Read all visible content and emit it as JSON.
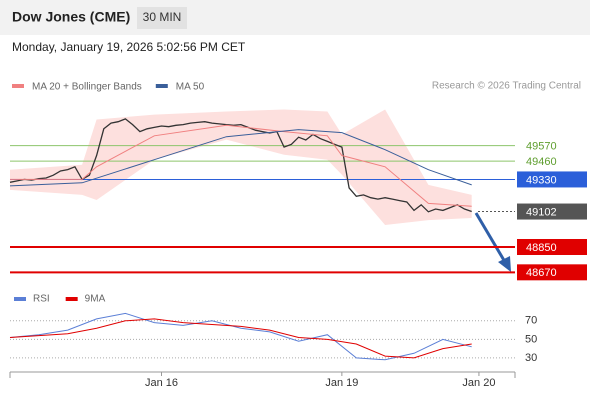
{
  "header": {
    "title": "Dow Jones (CME)",
    "timeframe": "30 MIN",
    "date": "Monday, January 19, 2026 5:02:56 PM CET",
    "credit": "Research © 2026 Trading Central"
  },
  "chart_data": [
    {
      "type": "line",
      "ylim": [
        48580,
        49930
      ],
      "xlim": [
        0,
        70
      ],
      "xticks": [
        {
          "value": 21,
          "label": "Jan 16"
        },
        {
          "value": 46,
          "label": "Jan 19"
        },
        {
          "value": 65,
          "label": "Jan 20"
        }
      ],
      "series": [
        {
          "color": "#333333",
          "x": [
            0,
            1,
            2,
            3,
            4,
            5,
            6,
            7,
            8,
            9,
            10,
            11,
            12,
            13,
            14,
            15,
            16,
            17,
            18,
            19,
            20,
            21,
            22,
            23,
            24,
            25,
            26,
            27,
            28,
            29,
            30,
            31,
            32,
            33,
            34,
            35,
            36,
            37,
            38,
            39,
            40,
            41,
            42,
            43,
            44,
            45,
            46,
            47,
            48,
            49,
            50,
            51,
            52,
            53,
            54,
            55,
            56,
            57,
            58,
            59,
            60,
            61,
            62,
            63,
            64
          ],
          "values": [
            49310,
            49320,
            49330,
            49325,
            49335,
            49340,
            49360,
            49390,
            49400,
            49420,
            49330,
            49360,
            49500,
            49690,
            49730,
            49740,
            49760,
            49720,
            49670,
            49690,
            49700,
            49710,
            49705,
            49715,
            49720,
            49730,
            49735,
            49740,
            49730,
            49725,
            49720,
            49715,
            49720,
            49700,
            49680,
            49670,
            49660,
            49670,
            49560,
            49580,
            49630,
            49610,
            49650,
            49620,
            49600,
            49580,
            49560,
            49270,
            49210,
            49220,
            49200,
            49190,
            49200,
            49190,
            49180,
            49170,
            49110,
            49150,
            49100,
            49120,
            49110,
            49130,
            49150,
            49120,
            49102
          ]
        },
        {
          "name": "MA 20 + Bollinger Bands",
          "color": "#f08080",
          "band_color": "#fde0de",
          "x": [
            0,
            10,
            12,
            20,
            30,
            38,
            44,
            46,
            52,
            58,
            64
          ],
          "values": [
            49330,
            49330,
            49420,
            49640,
            49715,
            49670,
            49640,
            49500,
            49420,
            49160,
            49140
          ],
          "upper": [
            49399,
            49434,
            49756,
            49791,
            49813,
            49827,
            49813,
            49649,
            49827,
            49291,
            49220
          ],
          "lower": [
            49256,
            49220,
            49184,
            49470,
            49613,
            49506,
            49470,
            49363,
            49006,
            49041,
            49056
          ]
        },
        {
          "name": "MA 50",
          "color": "#3a5f9a",
          "x": [
            0,
            10,
            20,
            30,
            40,
            46,
            52,
            58,
            64
          ],
          "values": [
            49284,
            49306,
            49470,
            49634,
            49684,
            49663,
            49541,
            49399,
            49291
          ]
        }
      ],
      "levels": [
        {
          "value": 49570,
          "color": "#8dc56b",
          "text_color": "#5f9e2f"
        },
        {
          "value": 49460,
          "color": "#8dc56b",
          "text_color": "#5f9e2f"
        },
        {
          "value": 49330,
          "color": "#2b5fd9",
          "text_color": "#ffffff"
        },
        {
          "value": 49102,
          "color": "#555555",
          "text_color": "#ffffff"
        },
        {
          "value": 48850,
          "color": "#e00000",
          "text_color": "#ffffff"
        },
        {
          "value": 48670,
          "color": "#e00000",
          "text_color": "#ffffff"
        }
      ]
    },
    {
      "type": "line",
      "ylim": [
        17,
        87
      ],
      "xlim": [
        0,
        70
      ],
      "yticks": [
        30,
        50,
        70
      ],
      "grid": true,
      "series": [
        {
          "name": "RSI",
          "color": "#5b7fd6",
          "x": [
            0,
            4,
            8,
            12,
            16,
            20,
            24,
            28,
            32,
            36,
            40,
            44,
            48,
            52,
            56,
            60,
            64
          ],
          "values": [
            52,
            55,
            60,
            72,
            78,
            68,
            65,
            70,
            62,
            58,
            48,
            55,
            30,
            28,
            35,
            50,
            42
          ]
        },
        {
          "name": "9MA",
          "color": "#e00000",
          "x": [
            0,
            4,
            8,
            12,
            16,
            20,
            24,
            28,
            32,
            36,
            40,
            44,
            48,
            52,
            56,
            60,
            64
          ],
          "values": [
            52,
            54,
            56,
            62,
            70,
            72,
            68,
            66,
            64,
            60,
            52,
            50,
            45,
            32,
            30,
            40,
            45
          ]
        }
      ]
    }
  ]
}
